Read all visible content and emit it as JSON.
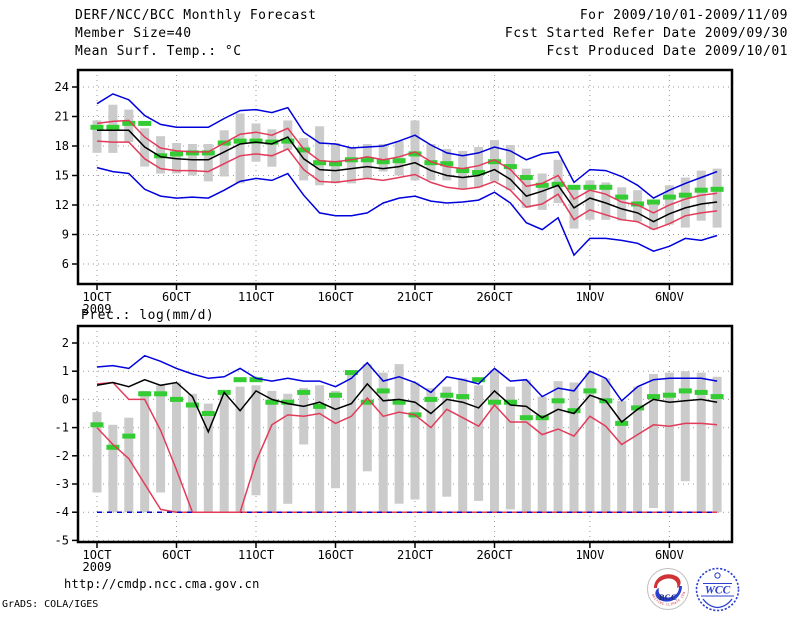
{
  "header": {
    "left": [
      "DERF/NCC/BCC Monthly Forecast",
      "Member Size=40"
    ],
    "right": [
      "For 2009/10/01-2009/11/09",
      "Fcst Started Refer Date 2009/09/30",
      "Fcst Produced Date 2009/10/01"
    ]
  },
  "colors": {
    "blue": "#0000dd",
    "red": "#e23b5a",
    "green": "#33cc33",
    "bar_gray": "#cbcbcb",
    "grid_gray": "#9a9a9a",
    "frame": "#000000"
  },
  "chart_data": [
    {
      "type": "line",
      "name": "mean-surface-temperature",
      "title": "Mean Surf. Temp.: °C",
      "ylim": [
        4.1,
        25.7
      ],
      "yticks": [
        6,
        9,
        12,
        15,
        18,
        21,
        24
      ],
      "grid": true,
      "xticks": {
        "labels": [
          "1OCT",
          "6OCT",
          "11OCT",
          "16OCT",
          "21OCT",
          "26OCT",
          "1NOV",
          "6NOV"
        ],
        "days": [
          1,
          6,
          11,
          16,
          21,
          26,
          32,
          37
        ],
        "year_label": "2009"
      },
      "bars": {
        "name": "member-spread-bar",
        "color": "#cbcbcb",
        "ranges": [
          [
            17.3,
            20.6
          ],
          [
            17.3,
            22.2
          ],
          [
            18.4,
            21.7
          ],
          [
            15.9,
            19.8
          ],
          [
            15.2,
            19.0
          ],
          [
            15.2,
            18.3
          ],
          [
            15.0,
            18.2
          ],
          [
            14.4,
            18.2
          ],
          [
            14.9,
            19.6
          ],
          [
            14.2,
            21.3
          ],
          [
            16.4,
            20.3
          ],
          [
            15.9,
            19.7
          ],
          [
            17.6,
            20.6
          ],
          [
            14.5,
            18.8
          ],
          [
            14.0,
            20.0
          ],
          [
            14.2,
            18.3
          ],
          [
            14.2,
            17.9
          ],
          [
            14.7,
            18.2
          ],
          [
            15.4,
            18.2
          ],
          [
            15.0,
            18.5
          ],
          [
            14.5,
            20.6
          ],
          [
            14.5,
            18.2
          ],
          [
            14.5,
            17.7
          ],
          [
            13.7,
            17.5
          ],
          [
            13.8,
            17.9
          ],
          [
            14.4,
            18.6
          ],
          [
            13.5,
            18.1
          ],
          [
            11.7,
            15.7
          ],
          [
            11.5,
            15.2
          ],
          [
            12.2,
            16.6
          ],
          [
            9.6,
            14.0
          ],
          [
            10.5,
            14.5
          ],
          [
            10.5,
            14.3
          ],
          [
            10.4,
            13.8
          ],
          [
            10.3,
            13.5
          ],
          [
            9.5,
            12.5
          ],
          [
            10.0,
            14.0
          ],
          [
            9.7,
            14.8
          ],
          [
            10.4,
            15.5
          ],
          [
            9.7,
            15.7
          ]
        ]
      },
      "green_dashes": {
        "name": "observation-dash",
        "color": "#33cc33",
        "values": [
          19.9,
          19.9,
          20.3,
          20.3,
          17.0,
          17.2,
          17.3,
          17.3,
          18.3,
          18.5,
          18.5,
          18.4,
          18.5,
          17.6,
          16.3,
          16.2,
          16.6,
          16.6,
          16.4,
          16.5,
          17.2,
          16.3,
          16.2,
          15.5,
          15.3,
          16.4,
          15.9,
          14.8,
          14.0,
          14.1,
          13.8,
          13.8,
          13.8,
          12.8,
          12.1,
          12.3,
          12.8,
          13.0,
          13.5,
          13.6
        ]
      },
      "series": [
        {
          "name": "blue-upper",
          "color": "#0000dd",
          "values": [
            22.3,
            23.3,
            22.7,
            21.1,
            20.2,
            19.9,
            19.9,
            19.9,
            20.8,
            21.6,
            21.7,
            21.4,
            21.9,
            19.4,
            18.3,
            18.2,
            17.8,
            17.9,
            18.0,
            18.5,
            19.1,
            18.1,
            17.3,
            17.0,
            17.3,
            17.9,
            17.5,
            16.6,
            17.2,
            17.4,
            14.3,
            15.6,
            15.5,
            14.9,
            14.0,
            12.7,
            13.5,
            14.2,
            14.8,
            15.4
          ]
        },
        {
          "name": "blue-lower",
          "color": "#0000dd",
          "values": [
            15.8,
            15.4,
            15.2,
            13.6,
            12.9,
            12.7,
            12.8,
            12.7,
            13.5,
            14.4,
            14.7,
            14.5,
            15.2,
            13.0,
            11.2,
            10.9,
            10.9,
            11.2,
            12.2,
            12.7,
            12.9,
            12.4,
            12.2,
            12.3,
            12.5,
            13.3,
            12.2,
            10.2,
            9.5,
            10.7,
            6.9,
            8.6,
            8.6,
            8.4,
            8.1,
            7.3,
            7.8,
            8.6,
            8.4,
            8.9
          ]
        },
        {
          "name": "red-upper",
          "color": "#e23b5a",
          "values": [
            20.3,
            20.5,
            20.6,
            18.9,
            17.8,
            17.5,
            17.4,
            17.4,
            18.3,
            19.2,
            19.4,
            19.1,
            19.8,
            17.7,
            16.5,
            16.4,
            16.6,
            16.9,
            16.6,
            16.9,
            17.4,
            16.4,
            15.9,
            15.7,
            16.0,
            16.6,
            15.6,
            13.9,
            14.2,
            15.0,
            12.6,
            13.5,
            13.1,
            12.3,
            12.0,
            11.2,
            12.0,
            12.6,
            13.0,
            13.2
          ]
        },
        {
          "name": "red-lower",
          "color": "#e23b5a",
          "values": [
            18.5,
            18.4,
            18.4,
            16.7,
            15.7,
            15.5,
            15.5,
            15.4,
            16.2,
            17.0,
            17.2,
            17.0,
            17.7,
            15.6,
            14.4,
            14.3,
            14.5,
            14.7,
            14.5,
            14.8,
            15.1,
            14.3,
            13.8,
            13.6,
            13.8,
            14.4,
            13.5,
            11.8,
            12.1,
            13.1,
            10.5,
            11.5,
            11.0,
            10.5,
            10.3,
            9.5,
            10.1,
            10.9,
            11.2,
            11.4
          ]
        },
        {
          "name": "ensemble-mean",
          "color": "#000000",
          "values": [
            19.6,
            19.6,
            19.6,
            17.9,
            16.9,
            16.7,
            16.6,
            16.6,
            17.4,
            18.2,
            18.4,
            18.2,
            18.9,
            16.7,
            15.6,
            15.5,
            15.7,
            15.9,
            15.7,
            15.9,
            16.3,
            15.5,
            15.0,
            14.8,
            15.0,
            15.6,
            14.6,
            12.9,
            13.4,
            14.0,
            11.7,
            12.7,
            12.2,
            11.6,
            11.2,
            10.3,
            11.1,
            11.7,
            12.1,
            12.3
          ]
        }
      ]
    },
    {
      "type": "line",
      "name": "precipitation-log",
      "title": "Prec.: log(mm/d)",
      "ylim": [
        -5.1,
        2.6
      ],
      "yticks": [
        -5,
        -4,
        -3,
        -2,
        -1,
        0,
        1,
        2
      ],
      "grid": true,
      "xticks": {
        "labels": [
          "1OCT",
          "6OCT",
          "11OCT",
          "16OCT",
          "21OCT",
          "26OCT",
          "1NOV",
          "6NOV"
        ],
        "days": [
          1,
          6,
          11,
          16,
          21,
          26,
          32,
          37
        ],
        "year_label": "2009"
      },
      "bars": {
        "name": "member-spread-bar",
        "color": "#cbcbcb",
        "ranges": [
          [
            -3.3,
            -0.45
          ],
          [
            -4,
            -0.9
          ],
          [
            -4,
            -0.65
          ],
          [
            -4,
            0.3
          ],
          [
            -3.3,
            0.5
          ],
          [
            -4,
            0.6
          ],
          [
            -4,
            0.2
          ],
          [
            -4,
            -0.15
          ],
          [
            -4,
            0.2
          ],
          [
            -4,
            0.45
          ],
          [
            -3.4,
            0.5
          ],
          [
            -4,
            0.3
          ],
          [
            -3.7,
            0.2
          ],
          [
            -1.6,
            0.4
          ],
          [
            -4,
            0.5
          ],
          [
            -3.15,
            0.3
          ],
          [
            -4,
            0.95
          ],
          [
            -2.55,
            1.25
          ],
          [
            -4,
            0.95
          ],
          [
            -3.7,
            1.25
          ],
          [
            -3.55,
            0.6
          ],
          [
            -4,
            0.4
          ],
          [
            -3.45,
            0.45
          ],
          [
            -4,
            0.75
          ],
          [
            -3.6,
            0.5
          ],
          [
            -4,
            1.05
          ],
          [
            -3.9,
            0.45
          ],
          [
            -4,
            0.7
          ],
          [
            -4,
            0.1
          ],
          [
            -4,
            0.65
          ],
          [
            -4,
            0.6
          ],
          [
            -4,
            0.95
          ],
          [
            -4,
            0.75
          ],
          [
            -4,
            -0.05
          ],
          [
            -4,
            0.45
          ],
          [
            -3.85,
            0.9
          ],
          [
            -4,
            0.95
          ],
          [
            -2.9,
            1.0
          ],
          [
            -4,
            0.95
          ],
          [
            -4,
            0.8
          ]
        ]
      },
      "green_dashes": {
        "name": "observation-dash",
        "color": "#33cc33",
        "values": [
          -0.9,
          -1.7,
          -1.3,
          0.2,
          0.2,
          0.0,
          -0.2,
          -0.5,
          0.25,
          0.7,
          0.7,
          -0.1,
          -0.1,
          0.25,
          -0.25,
          0.15,
          0.95,
          -0.1,
          0.3,
          -0.1,
          -0.55,
          0.0,
          0.15,
          0.1,
          0.7,
          -0.1,
          -0.1,
          -0.65,
          -0.65,
          -0.05,
          -0.4,
          0.3,
          -0.05,
          -0.85,
          -0.3,
          0.1,
          0.15,
          0.3,
          0.25,
          0.1
        ]
      },
      "series": [
        {
          "name": "red-lower",
          "color": "#e23b5a",
          "values": [
            -1.0,
            -1.6,
            -2.1,
            -3.0,
            -3.9,
            -4,
            -4,
            -4,
            -4,
            -4,
            -4,
            -4,
            -4,
            -4,
            -4,
            -4,
            -4,
            -4,
            -4,
            -4,
            -4,
            -4,
            -4,
            -4,
            -4,
            -4,
            -4,
            -4,
            -4,
            -4,
            -4,
            -4,
            -4,
            -4,
            -4,
            -4,
            -4,
            -4,
            -4,
            -4
          ]
        },
        {
          "name": "blue-lower-floor",
          "color": "#0000dd",
          "dashed": true,
          "values": [
            -4,
            -4,
            -4,
            -4,
            -4,
            -4,
            -4,
            -4,
            -4,
            -4,
            -4,
            -4,
            -4,
            -4,
            -4,
            -4,
            -4,
            -4,
            -4,
            -4,
            -4,
            -4,
            -4,
            -4,
            -4,
            -4,
            -4,
            -4,
            -4,
            -4,
            -4,
            -4,
            -4,
            -4,
            -4,
            -4,
            -4,
            -4,
            -4,
            -4
          ]
        },
        {
          "name": "red-upper",
          "color": "#e23b5a",
          "values": [
            0.55,
            0.6,
            0.0,
            0.0,
            -1.1,
            -2.5,
            -4,
            -4,
            -4,
            -4,
            -2.2,
            -0.9,
            -0.55,
            -0.6,
            -0.5,
            -0.85,
            -0.6,
            0.05,
            -0.6,
            -0.45,
            -0.55,
            -1.0,
            -0.35,
            -0.65,
            -0.95,
            -0.2,
            -0.8,
            -0.8,
            -1.25,
            -1.05,
            -1.3,
            -0.6,
            -0.95,
            -1.6,
            -1.25,
            -0.9,
            -0.95,
            -0.85,
            -0.85,
            -0.9
          ]
        },
        {
          "name": "blue-upper",
          "color": "#0000dd",
          "values": [
            1.15,
            1.2,
            1.1,
            1.55,
            1.35,
            1.1,
            0.9,
            0.75,
            0.8,
            1.1,
            0.75,
            0.65,
            0.75,
            0.65,
            0.65,
            0.45,
            0.75,
            1.3,
            0.65,
            0.8,
            0.6,
            0.25,
            0.8,
            0.7,
            0.55,
            1.1,
            0.65,
            0.7,
            0.1,
            0.4,
            0.3,
            1.0,
            0.75,
            -0.05,
            0.45,
            0.7,
            0.75,
            0.75,
            0.75,
            0.65
          ]
        },
        {
          "name": "ensemble-mean",
          "color": "#000000",
          "values": [
            0.5,
            0.6,
            0.45,
            0.7,
            0.5,
            0.6,
            0.1,
            -1.15,
            0.25,
            -0.4,
            0.3,
            0.0,
            -0.15,
            -0.25,
            -0.1,
            -0.35,
            -0.15,
            0.55,
            -0.05,
            0.0,
            -0.1,
            -0.5,
            0.0,
            -0.1,
            -0.3,
            0.3,
            -0.2,
            -0.25,
            -0.65,
            -0.35,
            -0.5,
            0.15,
            -0.05,
            -0.8,
            -0.35,
            0.0,
            -0.1,
            -0.05,
            0.0,
            -0.1
          ]
        }
      ]
    }
  ],
  "footer": {
    "url": "http://cmdp.ncc.cma.gov.cn",
    "credit": "GrADS: COLA/IGES",
    "logos": [
      {
        "label": "BCC",
        "arc_text": "BEIJING CLIMATE CENTER",
        "red": "#cf3333",
        "blue": "#2b3fd0",
        "text_color": "#1a2a7a"
      },
      {
        "label": "WCC",
        "color": "#2b3fd0"
      }
    ]
  }
}
